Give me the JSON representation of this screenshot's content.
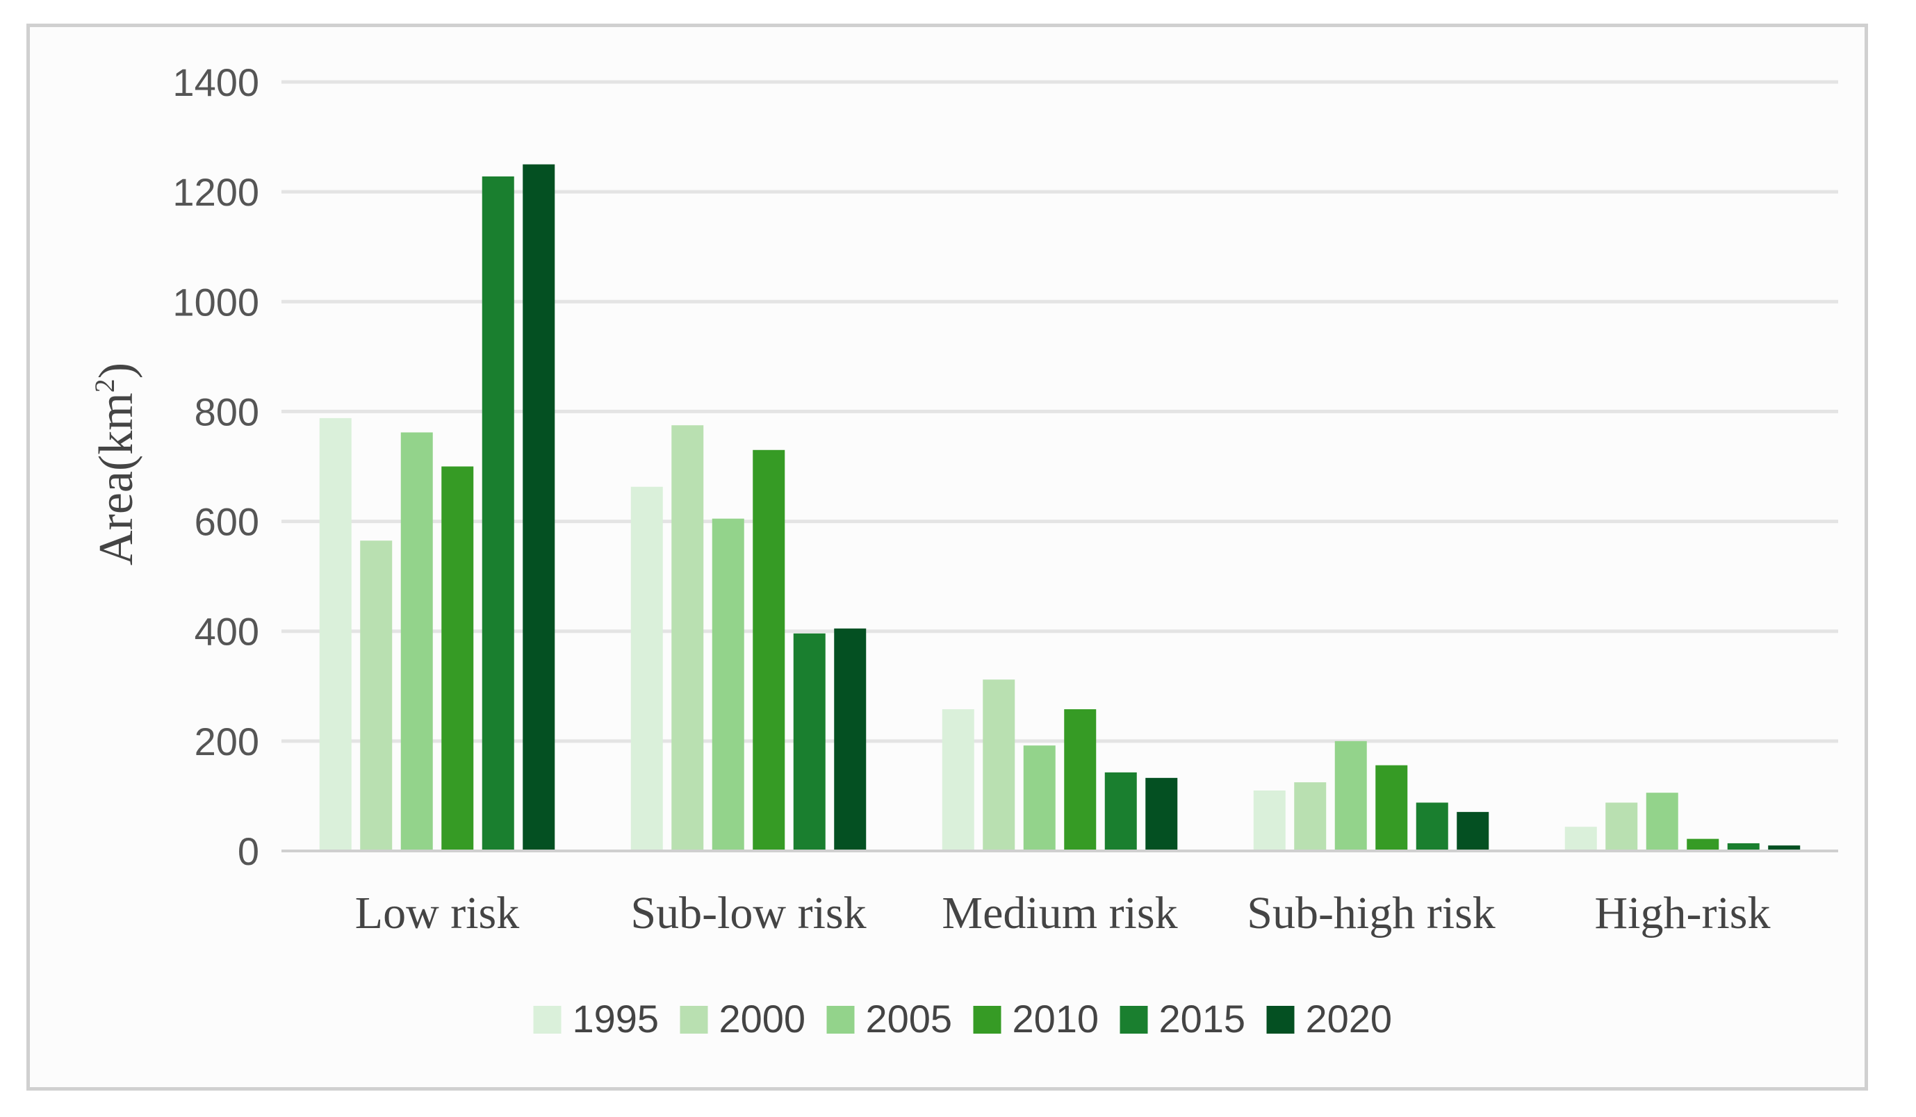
{
  "chart_data": {
    "type": "bar",
    "title": "",
    "xlabel": "",
    "ylabel": "Area(km",
    "ylabel_sup": "2",
    "ylabel_close": ")",
    "ylim": [
      0,
      1400
    ],
    "yticks": [
      "0",
      "200",
      "400",
      "600",
      "800",
      "1000",
      "1200",
      "1400"
    ],
    "grid": true,
    "legend_position": "bottom",
    "categories": [
      "Low risk",
      "Sub-low risk",
      "Medium risk",
      "Sub-high risk",
      "High-risk"
    ],
    "series": [
      {
        "name": "1995",
        "color": "#daf0da",
        "values": [
          788,
          663,
          258,
          110,
          44
        ]
      },
      {
        "name": "2000",
        "color": "#b9e0b1",
        "values": [
          565,
          775,
          312,
          125,
          88
        ]
      },
      {
        "name": "2005",
        "color": "#93d38b",
        "values": [
          762,
          605,
          192,
          200,
          106
        ]
      },
      {
        "name": "2010",
        "color": "#369b25",
        "values": [
          700,
          730,
          258,
          156,
          22
        ]
      },
      {
        "name": "2015",
        "color": "#1a7f2f",
        "values": [
          1228,
          396,
          143,
          88,
          14
        ]
      },
      {
        "name": "2020",
        "color": "#045022",
        "values": [
          1250,
          405,
          133,
          71,
          10
        ]
      }
    ]
  }
}
